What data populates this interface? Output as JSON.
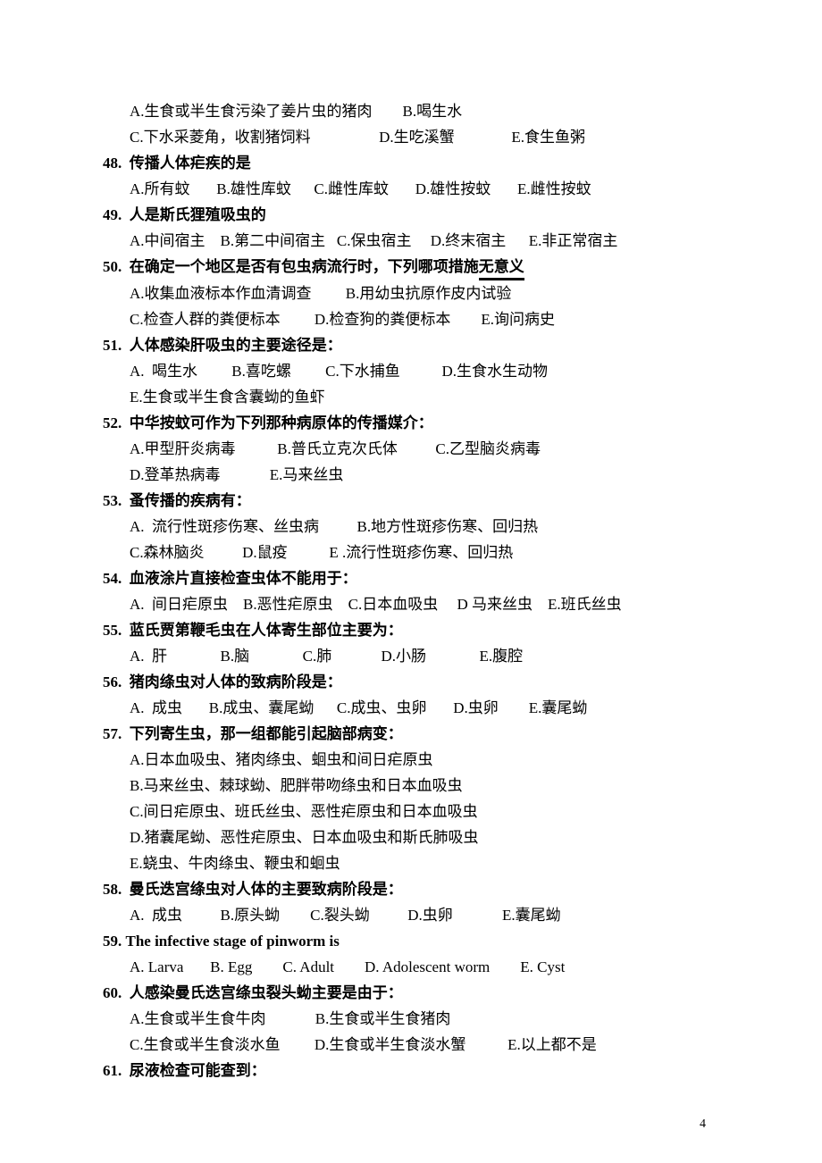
{
  "page_number": "4",
  "colors": {
    "text": "#000000",
    "bg": "#ffffff"
  },
  "fonts": {
    "body": "SimSun",
    "size_pt": 12
  },
  "lines": [
    {
      "type": "option",
      "text": "A.生食或半生食污染了姜片虫的猪肉        B.喝生水"
    },
    {
      "type": "option",
      "text": "C.下水采菱角，收割猪饲料                  D.生吃溪蟹               E.食生鱼粥"
    },
    {
      "type": "question",
      "num": "48.",
      "text": "传播人体疟疾的是"
    },
    {
      "type": "option",
      "text": "A.所有蚊       B.雄性库蚊      C.雌性库蚊       D.雄性按蚊       E.雌性按蚊"
    },
    {
      "type": "question",
      "num": "49.",
      "text": "人是斯氏狸殖吸虫的"
    },
    {
      "type": "option",
      "text": "A.中间宿主    B.第二中间宿主   C.保虫宿主     D.终末宿主      E.非正常宿主"
    },
    {
      "type": "question_emph",
      "num": "50.",
      "pre": "在确定一个地区是否有包虫病流行时，下列哪项措施",
      "emph": "无意义"
    },
    {
      "type": "option",
      "text": "A.收集血液标本作血清调查         B.用幼虫抗原作皮内试验"
    },
    {
      "type": "option",
      "text": "C.检查人群的粪便标本         D.检查狗的粪便标本        E.询问病史"
    },
    {
      "type": "question",
      "num": "51.",
      "text": "人体感染肝吸虫的主要途径是："
    },
    {
      "type": "option",
      "text": "A.  喝生水         B.喜吃螺         C.下水捕鱼           D.生食水生动物"
    },
    {
      "type": "option",
      "text": "E.生食或半生食含囊蚴的鱼虾"
    },
    {
      "type": "question",
      "num": "52.",
      "text": "中华按蚊可作为下列那种病原体的传播媒介："
    },
    {
      "type": "option",
      "text": "A.甲型肝炎病毒           B.普氏立克次氏体          C.乙型脑炎病毒"
    },
    {
      "type": "option",
      "text": "D.登革热病毒             E.马来丝虫"
    },
    {
      "type": "question",
      "num": "53.",
      "text": "蚤传播的疾病有："
    },
    {
      "type": "option",
      "text": "A.  流行性斑疹伤寒、丝虫病          B.地方性斑疹伤寒、回归热"
    },
    {
      "type": "option",
      "text": "C.森林脑炎          D.鼠疫           E .流行性斑疹伤寒、回归热"
    },
    {
      "type": "question",
      "num": "54.",
      "text": "血液涂片直接检查虫体不能用于："
    },
    {
      "type": "option",
      "text": "A.  间日疟原虫    B.恶性疟原虫    C.日本血吸虫     D 马来丝虫    E.班氏丝虫"
    },
    {
      "type": "question",
      "num": "55.",
      "text": "蓝氏贾第鞭毛虫在人体寄生部位主要为："
    },
    {
      "type": "option",
      "text": "A.  肝              B.脑              C.肺             D.小肠              E.腹腔"
    },
    {
      "type": "question",
      "num": "56.",
      "text": "猪肉绦虫对人体的致病阶段是："
    },
    {
      "type": "option",
      "text": "A.  成虫       B.成虫、囊尾蚴      C.成虫、虫卵       D.虫卵        E.囊尾蚴"
    },
    {
      "type": "question",
      "num": "57.",
      "text": "下列寄生虫，那一组都能引起脑部病变："
    },
    {
      "type": "option",
      "text": "A.日本血吸虫、猪肉绦虫、蛔虫和间日疟原虫"
    },
    {
      "type": "option",
      "text": "B.马来丝虫、棘球蚴、肥胖带吻绦虫和日本血吸虫"
    },
    {
      "type": "option",
      "text": "C.间日疟原虫、班氏丝虫、恶性疟原虫和日本血吸虫"
    },
    {
      "type": "option",
      "text": "D.猪囊尾蚴、恶性疟原虫、日本血吸虫和斯氏肺吸虫"
    },
    {
      "type": "option",
      "text": "E.蛲虫、牛肉绦虫、鞭虫和蛔虫"
    },
    {
      "type": "question",
      "num": "58.",
      "text": "曼氏迭宫绦虫对人体的主要致病阶段是："
    },
    {
      "type": "option",
      "text": "A.  成虫          B.原头蚴        C.裂头蚴          D.虫卵             E.囊尾蚴"
    },
    {
      "type": "question_en",
      "num": "59.",
      "text": "The infective stage of pinworm is"
    },
    {
      "type": "option_en",
      "text": "A. Larva       B. Egg        C. Adult        D. Adolescent worm        E. Cyst"
    },
    {
      "type": "question",
      "num": "60.",
      "text": "人感染曼氏迭宫绦虫裂头蚴主要是由于："
    },
    {
      "type": "option",
      "text": "A.生食或半生食牛肉             B.生食或半生食猪肉"
    },
    {
      "type": "option",
      "text": "C.生食或半生食淡水鱼         D.生食或半生食淡水蟹           E.以上都不是"
    },
    {
      "type": "question",
      "num": "61.",
      "text": "尿液检查可能查到："
    }
  ]
}
